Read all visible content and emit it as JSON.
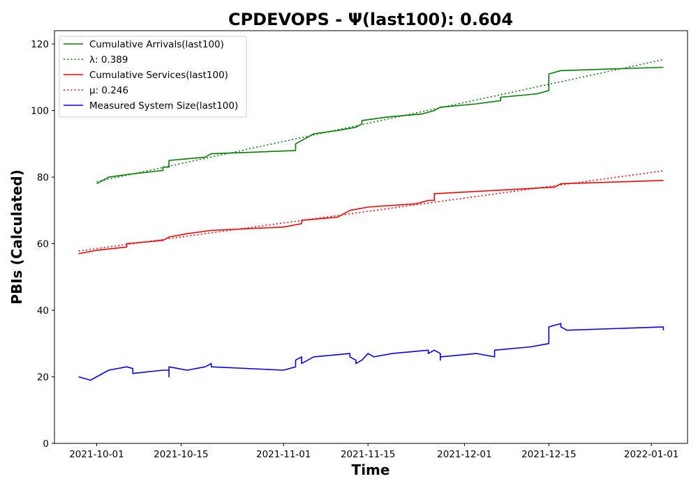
{
  "chart_data": {
    "type": "line",
    "title": "CPDEVOPS -  Ψ(last100): 0.604",
    "xlabel": "Time",
    "ylabel": "PBIs (Calculated)",
    "xlim": [
      "2021-09-24",
      "2022-01-07"
    ],
    "ylim": [
      0,
      124
    ],
    "x_ticks": [
      "2021-10-01",
      "2021-10-15",
      "2021-11-01",
      "2021-11-15",
      "2021-12-01",
      "2021-12-15",
      "2022-01-01"
    ],
    "y_ticks": [
      0,
      20,
      40,
      60,
      80,
      100,
      120
    ],
    "grid": false,
    "legend_position": "top-left",
    "series": [
      {
        "name": "Cumulative Arrivals(last100)",
        "color": "#008000",
        "style": "solid",
        "points": [
          [
            "2021-10-01",
            78
          ],
          [
            "2021-10-02",
            79
          ],
          [
            "2021-10-03",
            80
          ],
          [
            "2021-10-07",
            81
          ],
          [
            "2021-10-12",
            82
          ],
          [
            "2021-10-12",
            83
          ],
          [
            "2021-10-13",
            83
          ],
          [
            "2021-10-13",
            85
          ],
          [
            "2021-10-19",
            86
          ],
          [
            "2021-10-20",
            87
          ],
          [
            "2021-11-03",
            88
          ],
          [
            "2021-11-03",
            90
          ],
          [
            "2021-11-05",
            92
          ],
          [
            "2021-11-06",
            93
          ],
          [
            "2021-11-10",
            94
          ],
          [
            "2021-11-13",
            95
          ],
          [
            "2021-11-14",
            96
          ],
          [
            "2021-11-14",
            97
          ],
          [
            "2021-11-18",
            98
          ],
          [
            "2021-11-24",
            99
          ],
          [
            "2021-11-26",
            100
          ],
          [
            "2021-11-27",
            101
          ],
          [
            "2021-12-03",
            102
          ],
          [
            "2021-12-07",
            103
          ],
          [
            "2021-12-07",
            104
          ],
          [
            "2021-12-13",
            105
          ],
          [
            "2021-12-15",
            106
          ],
          [
            "2021-12-15",
            111
          ],
          [
            "2021-12-17",
            112
          ],
          [
            "2022-01-03",
            113
          ]
        ]
      },
      {
        "name": "λ: 0.389",
        "color": "#008000",
        "style": "dotted",
        "points": [
          [
            "2021-10-01",
            78.6
          ],
          [
            "2022-01-03",
            115.3
          ]
        ]
      },
      {
        "name": "Cumulative Services(last100)",
        "color": "#ff0000",
        "style": "solid",
        "points": [
          [
            "2021-09-28",
            57
          ],
          [
            "2021-10-01",
            58
          ],
          [
            "2021-10-06",
            59
          ],
          [
            "2021-10-06",
            60
          ],
          [
            "2021-10-12",
            61
          ],
          [
            "2021-10-13",
            62
          ],
          [
            "2021-10-16",
            63
          ],
          [
            "2021-10-20",
            64
          ],
          [
            "2021-11-01",
            65
          ],
          [
            "2021-11-04",
            66
          ],
          [
            "2021-11-04",
            67
          ],
          [
            "2021-11-10",
            68
          ],
          [
            "2021-11-11",
            69
          ],
          [
            "2021-11-12",
            70
          ],
          [
            "2021-11-15",
            71
          ],
          [
            "2021-11-23",
            72
          ],
          [
            "2021-11-25",
            73
          ],
          [
            "2021-11-26",
            73
          ],
          [
            "2021-11-26",
            75
          ],
          [
            "2021-12-16",
            77
          ],
          [
            "2021-12-17",
            78
          ],
          [
            "2022-01-03",
            79
          ]
        ]
      },
      {
        "name": "μ: 0.246",
        "color": "#ff0000",
        "style": "dotted",
        "points": [
          [
            "2021-09-28",
            57.8
          ],
          [
            "2022-01-03",
            81.9
          ]
        ]
      },
      {
        "name": "Measured System Size(last100)",
        "color": "#0000ff",
        "style": "solid",
        "points": [
          [
            "2021-09-28",
            20
          ],
          [
            "2021-09-30",
            19
          ],
          [
            "2021-10-01",
            20
          ],
          [
            "2021-10-03",
            22
          ],
          [
            "2021-10-06",
            23
          ],
          [
            "2021-10-07",
            22.5
          ],
          [
            "2021-10-07",
            21
          ],
          [
            "2021-10-12",
            22
          ],
          [
            "2021-10-13",
            22
          ],
          [
            "2021-10-13",
            20
          ],
          [
            "2021-10-13",
            23
          ],
          [
            "2021-10-16",
            22
          ],
          [
            "2021-10-19",
            23
          ],
          [
            "2021-10-20",
            24
          ],
          [
            "2021-10-20",
            23
          ],
          [
            "2021-11-01",
            22
          ],
          [
            "2021-11-03",
            23
          ],
          [
            "2021-11-03",
            25
          ],
          [
            "2021-11-04",
            26
          ],
          [
            "2021-11-04",
            24
          ],
          [
            "2021-11-06",
            26
          ],
          [
            "2021-11-12",
            27
          ],
          [
            "2021-11-12",
            26
          ],
          [
            "2021-11-13",
            25
          ],
          [
            "2021-11-13",
            24
          ],
          [
            "2021-11-14",
            25
          ],
          [
            "2021-11-15",
            27
          ],
          [
            "2021-11-16",
            26
          ],
          [
            "2021-11-19",
            27
          ],
          [
            "2021-11-25",
            28
          ],
          [
            "2021-11-25",
            27
          ],
          [
            "2021-11-26",
            28
          ],
          [
            "2021-11-27",
            27
          ],
          [
            "2021-11-27",
            25
          ],
          [
            "2021-11-27",
            26
          ],
          [
            "2021-12-03",
            27
          ],
          [
            "2021-12-06",
            26
          ],
          [
            "2021-12-06",
            28
          ],
          [
            "2021-12-12",
            29
          ],
          [
            "2021-12-15",
            30
          ],
          [
            "2021-12-15",
            35
          ],
          [
            "2021-12-17",
            36
          ],
          [
            "2021-12-17",
            35
          ],
          [
            "2021-12-18",
            34
          ],
          [
            "2022-01-03",
            35
          ],
          [
            "2022-01-03",
            34
          ]
        ]
      }
    ]
  }
}
